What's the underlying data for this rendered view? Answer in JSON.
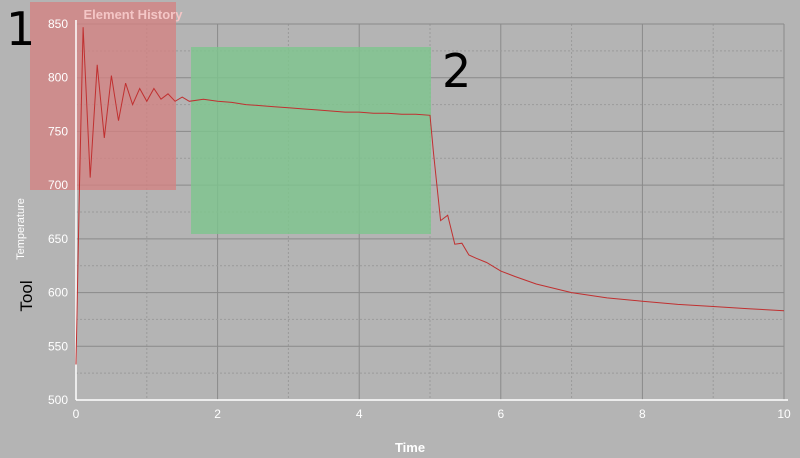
{
  "chart_data": {
    "type": "line",
    "title": "Element History",
    "xlabel": "Time",
    "ylabel_main": "Tool",
    "ylabel_sub": "Temperature",
    "xlim": [
      0,
      10
    ],
    "ylim": [
      500,
      850
    ],
    "x_ticks": [
      0,
      2,
      4,
      6,
      8,
      10
    ],
    "y_ticks": [
      500,
      550,
      600,
      650,
      700,
      750,
      800,
      850
    ],
    "grid": true,
    "series": [
      {
        "color": "#c03030",
        "x": [
          0,
          0.02,
          0.05,
          0.1,
          0.2,
          0.3,
          0.4,
          0.5,
          0.6,
          0.7,
          0.8,
          0.9,
          1.0,
          1.1,
          1.2,
          1.3,
          1.4,
          1.5,
          1.6,
          1.8,
          2.0,
          2.2,
          2.4,
          2.6,
          2.8,
          3.0,
          3.2,
          3.4,
          3.6,
          3.8,
          4.0,
          4.2,
          4.4,
          4.6,
          4.8,
          5.0,
          5.05,
          5.15,
          5.25,
          5.35,
          5.45,
          5.55,
          5.65,
          5.8,
          6.0,
          6.2,
          6.5,
          7.0,
          7.5,
          8.0,
          8.5,
          9.0,
          9.5,
          10.0
        ],
        "y": [
          533,
          600,
          700,
          847,
          707,
          812,
          744,
          802,
          760,
          795,
          775,
          790,
          778,
          790,
          780,
          785,
          778,
          782,
          778,
          780,
          778,
          777,
          775,
          774,
          773,
          772,
          771,
          770,
          769,
          768,
          768,
          767,
          767,
          766,
          766,
          765,
          730,
          667,
          672,
          645,
          646,
          635,
          632,
          628,
          620,
          615,
          608,
          600,
          595,
          592,
          589,
          587,
          585,
          583
        ]
      }
    ]
  },
  "annotations": {
    "panel_1": "1",
    "panel_2": "2"
  },
  "highlight_colors": {
    "region_1": "#d68080",
    "region_2": "#7dc68d"
  }
}
